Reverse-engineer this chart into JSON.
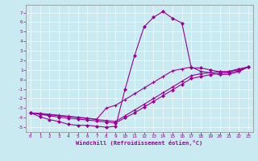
{
  "xlabel": "Windchill (Refroidissement éolien,°C)",
  "bg_color": "#c8eaf0",
  "line_color": "#990099",
  "grid_color": "#aed4dc",
  "xlim": [
    -0.5,
    23.5
  ],
  "ylim": [
    -5.5,
    7.8
  ],
  "xticks": [
    0,
    1,
    2,
    3,
    4,
    5,
    6,
    7,
    8,
    9,
    10,
    11,
    12,
    13,
    14,
    15,
    16,
    17,
    18,
    19,
    20,
    21,
    22,
    23
  ],
  "yticks": [
    -5,
    -4,
    -3,
    -2,
    -1,
    0,
    1,
    2,
    3,
    4,
    5,
    6,
    7
  ],
  "s1_x": [
    0,
    1,
    2,
    3,
    4,
    5,
    6,
    7,
    8,
    9,
    10,
    11,
    12,
    13,
    14,
    15,
    16,
    17,
    18,
    19,
    20,
    21,
    22,
    23
  ],
  "s1_y": [
    -3.5,
    -3.9,
    -4.2,
    -4.4,
    -4.7,
    -4.8,
    -4.8,
    -4.9,
    -5.0,
    -4.9,
    -1.0,
    2.5,
    5.5,
    6.5,
    7.1,
    6.4,
    5.9,
    1.2,
    1.2,
    1.0,
    0.8,
    0.85,
    1.1,
    1.3
  ],
  "s2_x": [
    0,
    1,
    2,
    3,
    4,
    5,
    6,
    7,
    8,
    9,
    10,
    11,
    12,
    13,
    14,
    15,
    16,
    17,
    18,
    19,
    20,
    21,
    22,
    23
  ],
  "s2_y": [
    -3.5,
    -3.6,
    -3.7,
    -3.8,
    -3.9,
    -4.0,
    -4.1,
    -4.2,
    -4.3,
    -4.4,
    -3.8,
    -3.2,
    -2.6,
    -2.0,
    -1.4,
    -0.8,
    -0.2,
    0.4,
    0.6,
    0.7,
    0.8,
    0.85,
    1.0,
    1.3
  ],
  "s3_x": [
    0,
    1,
    2,
    3,
    4,
    5,
    6,
    7,
    8,
    9,
    10,
    11,
    12,
    13,
    14,
    15,
    16,
    17,
    18,
    19,
    20,
    21,
    22,
    23
  ],
  "s3_y": [
    -3.5,
    -3.65,
    -3.8,
    -3.95,
    -4.05,
    -4.15,
    -4.25,
    -4.35,
    -4.45,
    -4.55,
    -4.0,
    -3.5,
    -2.9,
    -2.3,
    -1.7,
    -1.1,
    -0.5,
    0.1,
    0.3,
    0.5,
    0.65,
    0.7,
    0.9,
    1.3
  ],
  "s4_x": [
    0,
    1,
    2,
    3,
    4,
    5,
    6,
    7,
    8,
    9,
    10,
    11,
    12,
    13,
    14,
    15,
    16,
    17,
    18,
    19,
    20,
    21,
    22,
    23
  ],
  "s4_y": [
    -3.5,
    -3.55,
    -3.65,
    -3.75,
    -3.85,
    -3.95,
    -4.05,
    -4.15,
    -3.0,
    -2.7,
    -2.1,
    -1.5,
    -0.9,
    -0.3,
    0.3,
    0.9,
    1.1,
    1.3,
    0.85,
    0.7,
    0.5,
    0.55,
    0.8,
    1.3
  ]
}
